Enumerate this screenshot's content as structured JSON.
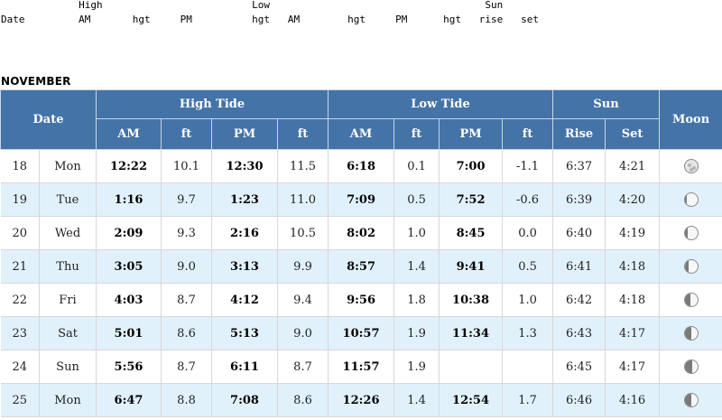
{
  "legend": {
    "line1": "             High                         Low                                    Sun",
    "line2": "Date         AM       hgt     PM          hgt   AM        hgt     PM      hgt   rise   set"
  },
  "month": "NOVEMBER",
  "headers": {
    "date": "Date",
    "high_tide": "High Tide",
    "low_tide": "Low Tide",
    "sun": "Sun",
    "moon": "Moon",
    "am": "AM",
    "ft": "ft",
    "pm": "PM",
    "rise": "Rise",
    "set": "Set"
  },
  "rows": [
    {
      "day": "18",
      "dow": "Mon",
      "hi_am": "12:22",
      "hi_am_ft": "10.1",
      "hi_pm": "12:30",
      "hi_pm_ft": "11.5",
      "lo_am": "6:18",
      "lo_am_ft": "0.1",
      "lo_pm": "7:00",
      "lo_pm_ft": "-1.1",
      "rise": "6:37",
      "set": "4:21",
      "moon_phase": "full",
      "moon_illumination": 1.0
    },
    {
      "day": "19",
      "dow": "Tue",
      "hi_am": "1:16",
      "hi_am_ft": "9.7",
      "hi_pm": "1:23",
      "hi_pm_ft": "11.0",
      "lo_am": "7:09",
      "lo_am_ft": "0.5",
      "lo_pm": "7:52",
      "lo_pm_ft": "-0.6",
      "rise": "6:39",
      "set": "4:20",
      "moon_phase": "waning-gibbous",
      "moon_illumination": 0.97
    },
    {
      "day": "20",
      "dow": "Wed",
      "hi_am": "2:09",
      "hi_am_ft": "9.3",
      "hi_pm": "2:16",
      "hi_pm_ft": "10.5",
      "lo_am": "8:02",
      "lo_am_ft": "1.0",
      "lo_pm": "8:45",
      "lo_pm_ft": "0.0",
      "rise": "6:40",
      "set": "4:19",
      "moon_phase": "waning-gibbous",
      "moon_illumination": 0.92
    },
    {
      "day": "21",
      "dow": "Thu",
      "hi_am": "3:05",
      "hi_am_ft": "9.0",
      "hi_pm": "3:13",
      "hi_pm_ft": "9.9",
      "lo_am": "8:57",
      "lo_am_ft": "1.4",
      "lo_pm": "9:41",
      "lo_pm_ft": "0.5",
      "rise": "6:41",
      "set": "4:18",
      "moon_phase": "waning-gibbous",
      "moon_illumination": 0.85
    },
    {
      "day": "22",
      "dow": "Fri",
      "hi_am": "4:03",
      "hi_am_ft": "8.7",
      "hi_pm": "4:12",
      "hi_pm_ft": "9.4",
      "lo_am": "9:56",
      "lo_am_ft": "1.8",
      "lo_pm": "10:38",
      "lo_pm_ft": "1.0",
      "rise": "6:42",
      "set": "4:18",
      "moon_phase": "waning-gibbous",
      "moon_illumination": 0.75
    },
    {
      "day": "23",
      "dow": "Sat",
      "hi_am": "5:01",
      "hi_am_ft": "8.6",
      "hi_pm": "5:13",
      "hi_pm_ft": "9.0",
      "lo_am": "10:57",
      "lo_am_ft": "1.9",
      "lo_pm": "11:34",
      "lo_pm_ft": "1.3",
      "rise": "6:43",
      "set": "4:17",
      "moon_phase": "waning-gibbous",
      "moon_illumination": 0.65
    },
    {
      "day": "24",
      "dow": "Sun",
      "hi_am": "5:56",
      "hi_am_ft": "8.7",
      "hi_pm": "6:11",
      "hi_pm_ft": "8.7",
      "lo_am": "11:57",
      "lo_am_ft": "1.9",
      "lo_pm": "",
      "lo_pm_ft": "",
      "rise": "6:45",
      "set": "4:17",
      "moon_phase": "waning-gibbous",
      "moon_illumination": 0.58
    },
    {
      "day": "25",
      "dow": "Mon",
      "hi_am": "6:47",
      "hi_am_ft": "8.8",
      "hi_pm": "7:08",
      "hi_pm_ft": "8.6",
      "lo_am": "12:26",
      "lo_am_ft": "1.4",
      "lo_pm": "12:54",
      "lo_pm_ft": "1.7",
      "rise": "6:46",
      "set": "4:16",
      "moon_phase": "last-quarter",
      "moon_illumination": 0.5
    }
  ],
  "colors": {
    "header_bg": "#4473a8",
    "alt_row_bg": "#e1f1fb"
  }
}
